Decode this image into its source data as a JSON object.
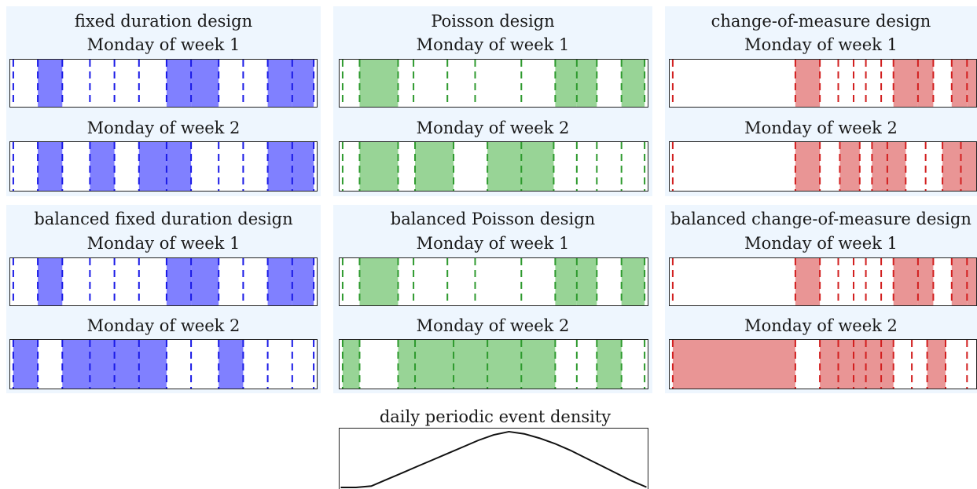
{
  "colors": {
    "blue_fill": "#8080ff",
    "blue_line": "#1a1ae6",
    "green_fill": "#98d496",
    "green_line": "#2e9a2e",
    "red_fill": "#e99595",
    "red_line": "#d21f1f",
    "panel_bg": "#eef6fe"
  },
  "panels": [
    {
      "title": "fixed duration design",
      "color": "blue",
      "rows": [
        {
          "label": "Monday of week 1",
          "events": [
            0.01,
            0.09,
            0.17,
            0.26,
            0.34,
            0.42,
            0.51,
            0.59,
            0.68,
            0.76,
            0.84,
            0.92,
            0.99
          ],
          "shaded": [
            1,
            6,
            7,
            10,
            11
          ]
        },
        {
          "label": "Monday of week 2",
          "events": [
            0.01,
            0.09,
            0.17,
            0.26,
            0.34,
            0.42,
            0.51,
            0.59,
            0.68,
            0.76,
            0.84,
            0.92,
            0.99
          ],
          "shaded": [
            1,
            3,
            5,
            6,
            10,
            11
          ]
        }
      ]
    },
    {
      "title": "Poisson design",
      "color": "green",
      "rows": [
        {
          "label": "Monday of week 1",
          "events": [
            0.01,
            0.065,
            0.19,
            0.24,
            0.35,
            0.44,
            0.59,
            0.7,
            0.77,
            0.835,
            0.915,
            0.99
          ],
          "shaded": [
            1,
            7,
            8,
            10
          ]
        },
        {
          "label": "Monday of week 2",
          "events": [
            0.01,
            0.065,
            0.19,
            0.245,
            0.37,
            0.48,
            0.59,
            0.695,
            0.77,
            0.835,
            0.915,
            0.99
          ],
          "shaded": [
            1,
            3,
            5,
            6
          ]
        }
      ]
    },
    {
      "title": "change-of-measure design",
      "color": "red",
      "rows": [
        {
          "label": "Monday of week 1",
          "events": [
            0.01,
            0.41,
            0.49,
            0.55,
            0.6,
            0.64,
            0.69,
            0.73,
            0.81,
            0.86,
            0.92,
            0.97
          ],
          "shaded": [
            1,
            7,
            8,
            10,
            11
          ]
        },
        {
          "label": "Monday of week 2",
          "events": [
            0.01,
            0.41,
            0.49,
            0.555,
            0.62,
            0.66,
            0.71,
            0.77,
            0.835,
            0.89,
            0.95
          ],
          "shaded": [
            1,
            3,
            5,
            6,
            9,
            10
          ]
        }
      ]
    },
    {
      "title": "balanced fixed duration design",
      "color": "blue",
      "rows": [
        {
          "label": "Monday of week 1",
          "events": [
            0.01,
            0.09,
            0.17,
            0.26,
            0.34,
            0.42,
            0.51,
            0.59,
            0.68,
            0.76,
            0.84,
            0.92,
            0.99
          ],
          "shaded": [
            1,
            6,
            7,
            10,
            11
          ]
        },
        {
          "label": "Monday of week 2",
          "events": [
            0.01,
            0.09,
            0.17,
            0.26,
            0.34,
            0.42,
            0.51,
            0.59,
            0.68,
            0.76,
            0.84,
            0.92,
            0.99
          ],
          "shaded": [
            0,
            2,
            3,
            4,
            5,
            8
          ]
        }
      ]
    },
    {
      "title": "balanced Poisson design",
      "color": "green",
      "rows": [
        {
          "label": "Monday of week 1",
          "events": [
            0.01,
            0.065,
            0.19,
            0.24,
            0.35,
            0.44,
            0.59,
            0.7,
            0.77,
            0.835,
            0.915,
            0.99
          ],
          "shaded": [
            1,
            7,
            8,
            10
          ]
        },
        {
          "label": "Monday of week 2",
          "events": [
            0.01,
            0.065,
            0.19,
            0.245,
            0.37,
            0.48,
            0.59,
            0.7,
            0.77,
            0.835,
            0.915,
            0.99
          ],
          "shaded": [
            0,
            2,
            3,
            4,
            5,
            6,
            9
          ]
        }
      ]
    },
    {
      "title": "balanced change-of-measure design",
      "color": "red",
      "rows": [
        {
          "label": "Monday of week 1",
          "events": [
            0.01,
            0.41,
            0.49,
            0.55,
            0.6,
            0.64,
            0.69,
            0.73,
            0.81,
            0.86,
            0.92,
            0.97
          ],
          "shaded": [
            1,
            7,
            8,
            10,
            11
          ]
        },
        {
          "label": "Monday of week 2",
          "events": [
            0.01,
            0.41,
            0.49,
            0.55,
            0.6,
            0.64,
            0.69,
            0.73,
            0.79,
            0.84,
            0.9,
            0.97
          ],
          "shaded": [
            0,
            2,
            3,
            4,
            5,
            6,
            9
          ]
        }
      ]
    }
  ],
  "density": {
    "title": "daily periodic event density",
    "curve": [
      0.44,
      0.46,
      0.5,
      0.56,
      0.62,
      0.68,
      0.74,
      0.8,
      0.86,
      0.92,
      0.97,
      1.0,
      0.98,
      0.94,
      0.89,
      0.83,
      0.76,
      0.69,
      0.62,
      0.55,
      0.49
    ]
  }
}
